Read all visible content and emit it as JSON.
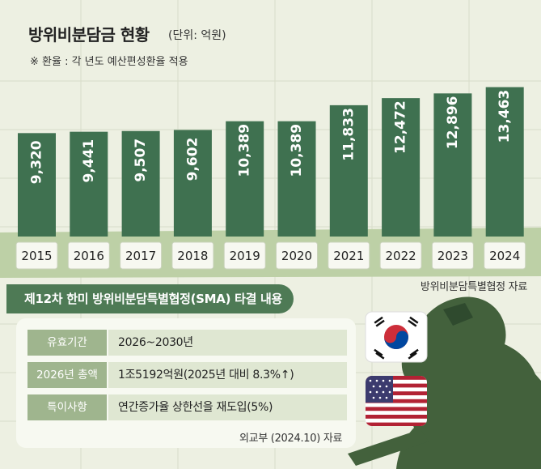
{
  "title": "방위비분담금 현황",
  "unit": "(단위: 억원)",
  "note": "※ 환율 : 각 년도 예산편성환율 적용",
  "source_chart": "방위비분담특별협정 자료",
  "agreement": {
    "header": "제12차 한미 방위비분담특별협정(SMA) 타결 내용",
    "rows": [
      {
        "label": "유효기간",
        "value": "2026~2030년"
      },
      {
        "label": "2026년 총액",
        "value": "1조5192억원(2025년 대비 8.3%↑)"
      },
      {
        "label": "특이사항",
        "value": "연간증가율 상한선을 재도입(5%)"
      }
    ],
    "source": "외교부 (2024.10) 자료"
  },
  "colors": {
    "bar": "#3f7150",
    "bar_label_text": "#ffffff",
    "band": "#bdd0a6",
    "year_box": "#f7f8f1",
    "header": "#4e7a55",
    "row_label": "#9fb58e",
    "row_value": "#dfe7d2",
    "silhouette": "#43613c"
  },
  "icons": [
    "korea-flag-icon",
    "usa-flag-icon",
    "soldier-silhouette"
  ],
  "chart_data": {
    "type": "bar",
    "categories": [
      "2015",
      "2016",
      "2017",
      "2018",
      "2019",
      "2020",
      "2021",
      "2022",
      "2023",
      "2024"
    ],
    "values": [
      9320,
      9441,
      9507,
      9602,
      10389,
      10389,
      11833,
      12472,
      12896,
      13463
    ],
    "value_labels": [
      "9,320",
      "9,441",
      "9,507",
      "9,602",
      "10,389",
      "10,389",
      "11,833",
      "12,472",
      "12,896",
      "13,463"
    ],
    "title": "방위비분담금 현황",
    "unit": "억원"
  }
}
